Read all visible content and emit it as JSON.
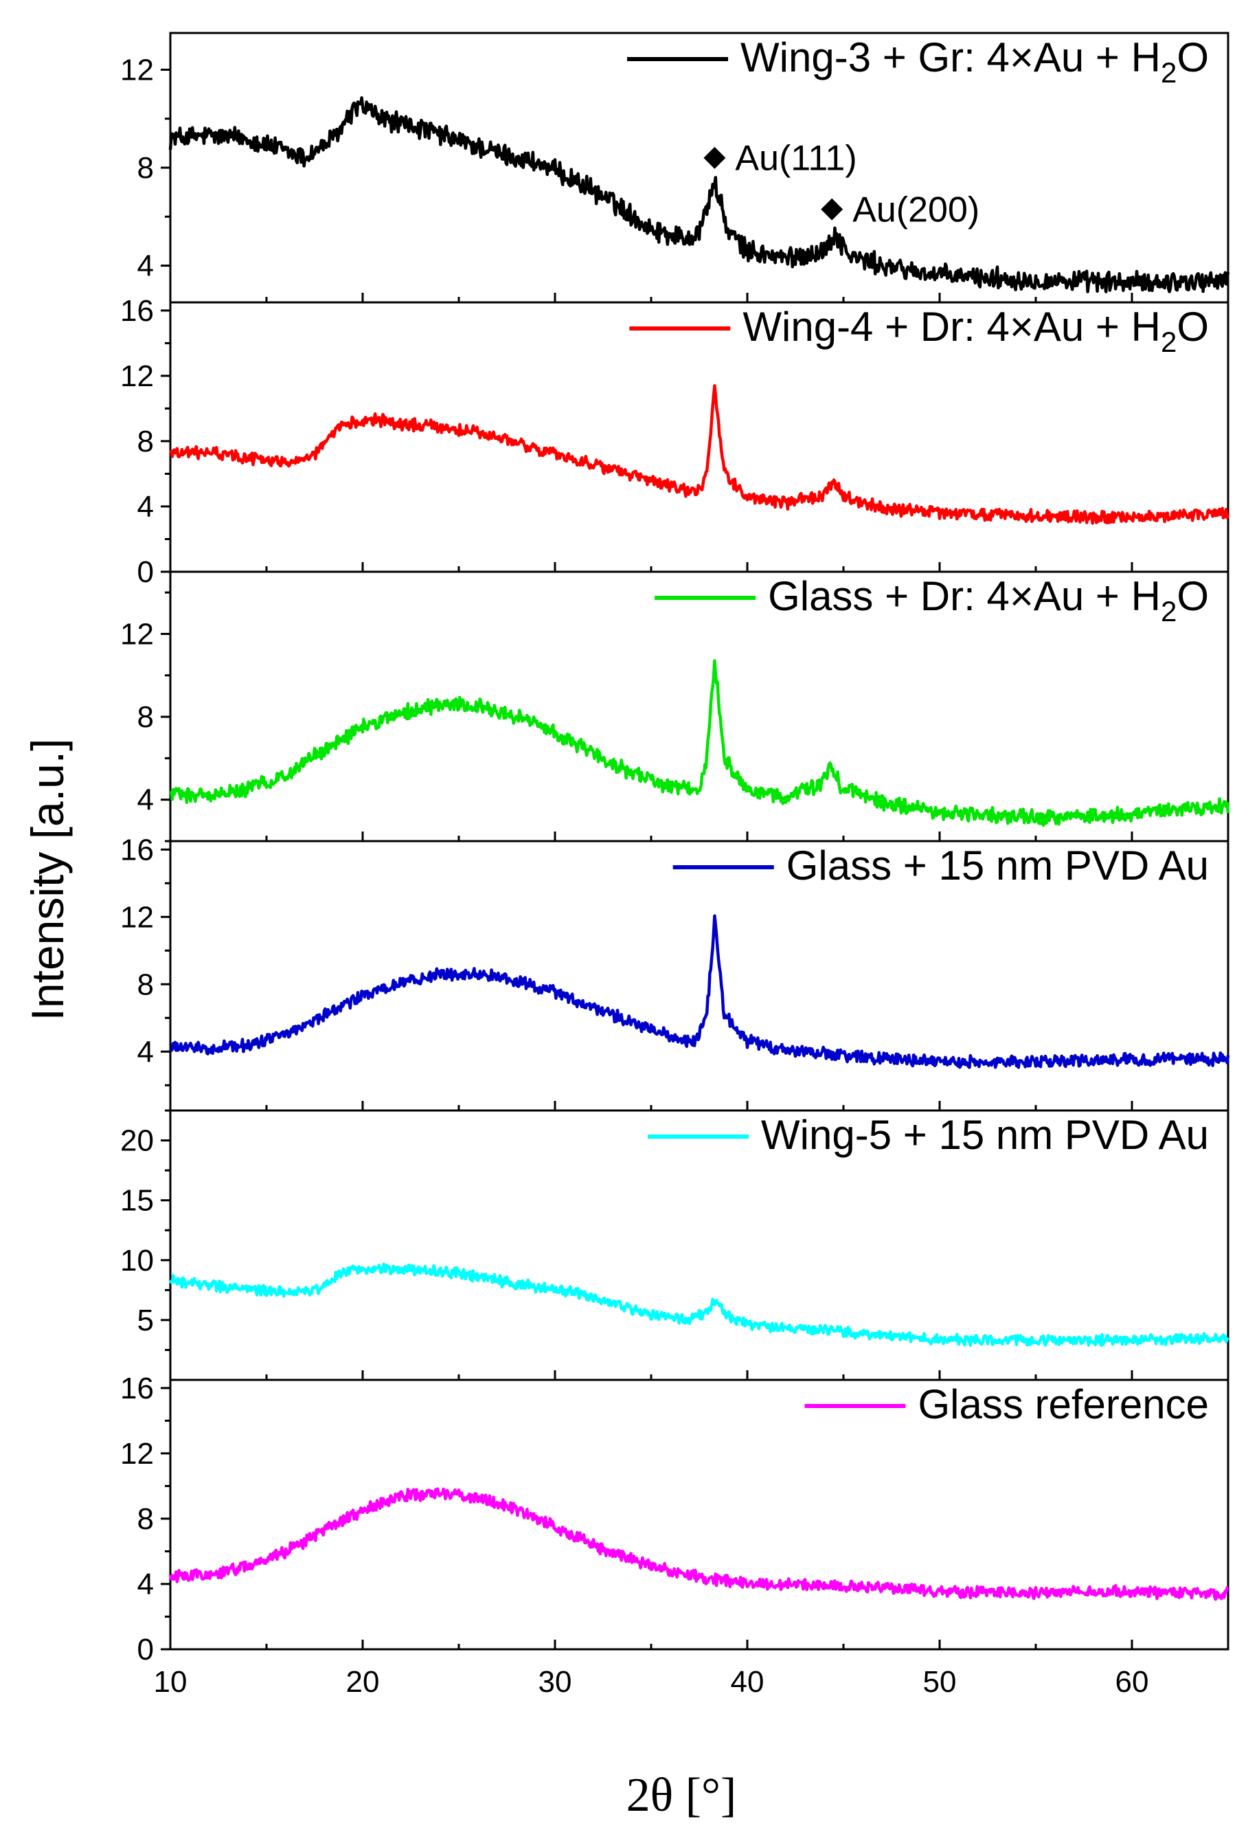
{
  "chart_data": {
    "type": "line",
    "xlabel": "2θ [°]",
    "ylabel": "Intensity [a.u.]",
    "xlim": [
      10,
      65
    ],
    "xticks": [
      10,
      20,
      30,
      40,
      50,
      60
    ],
    "panels": [
      {
        "name": "Wing-3 + Gr: 4×Au + H2O",
        "legend_parts": [
          "Wing-3 + Gr: 4×Au + H",
          "2",
          "O"
        ],
        "color": "#000000",
        "ylim": [
          2.5,
          13.5
        ],
        "yticks": [
          4,
          8,
          12
        ],
        "base": [
          [
            10,
            9.2
          ],
          [
            12,
            9.3
          ],
          [
            14,
            9.2
          ],
          [
            15.5,
            8.8
          ],
          [
            17,
            8.4
          ],
          [
            18.5,
            9.2
          ],
          [
            19.8,
            10.6
          ],
          [
            21,
            10.0
          ],
          [
            23,
            9.6
          ],
          [
            25,
            9.1
          ],
          [
            27,
            8.6
          ],
          [
            29,
            8.2
          ],
          [
            31,
            7.5
          ],
          [
            33,
            6.6
          ],
          [
            35,
            5.5
          ],
          [
            36.8,
            5.1
          ],
          [
            37.5,
            5.4
          ],
          [
            38.3,
            7.4
          ],
          [
            39.0,
            5.4
          ],
          [
            40,
            4.6
          ],
          [
            42,
            4.3
          ],
          [
            44,
            4.6
          ],
          [
            44.6,
            5.3
          ],
          [
            45.3,
            4.4
          ],
          [
            47,
            4.0
          ],
          [
            50,
            3.6
          ],
          [
            55,
            3.4
          ],
          [
            60,
            3.3
          ],
          [
            65,
            3.4
          ]
        ],
        "noise": 0.35,
        "annotations": [
          {
            "label": "Au(111)",
            "x": 38.3,
            "y": 8.4
          },
          {
            "label": "Au(200)",
            "x": 44.4,
            "y": 6.3
          }
        ]
      },
      {
        "name": "Wing-4 + Dr: 4×Au + H2O",
        "legend_parts": [
          "Wing-4 + Dr: 4×Au + H",
          "2",
          "O"
        ],
        "color": "#ff0000",
        "ylim": [
          0,
          16.5
        ],
        "yticks": [
          0,
          4,
          8,
          12,
          16
        ],
        "base": [
          [
            10,
            7.3
          ],
          [
            12,
            7.3
          ],
          [
            14,
            7.0
          ],
          [
            16,
            6.7
          ],
          [
            17.5,
            7.2
          ],
          [
            19,
            9.0
          ],
          [
            20.5,
            9.4
          ],
          [
            22,
            9.0
          ],
          [
            24,
            8.9
          ],
          [
            26,
            8.5
          ],
          [
            28,
            7.9
          ],
          [
            30,
            7.2
          ],
          [
            32,
            6.6
          ],
          [
            34,
            5.9
          ],
          [
            36,
            5.2
          ],
          [
            37.4,
            4.8
          ],
          [
            37.9,
            6.0
          ],
          [
            38.3,
            11.3
          ],
          [
            38.8,
            6.0
          ],
          [
            40,
            4.6
          ],
          [
            42,
            4.2
          ],
          [
            44,
            4.7
          ],
          [
            44.5,
            5.7
          ],
          [
            45,
            4.6
          ],
          [
            47,
            3.9
          ],
          [
            50,
            3.6
          ],
          [
            55,
            3.4
          ],
          [
            60,
            3.3
          ],
          [
            65,
            3.6
          ]
        ],
        "noise": 0.3,
        "annotations": []
      },
      {
        "name": "Glass + Dr: 4×Au + H2O",
        "legend_parts": [
          "Glass + Dr: 4×Au + H",
          "2",
          "O"
        ],
        "color": "#00e600",
        "ylim": [
          2,
          15
        ],
        "yticks": [
          4,
          8,
          12
        ],
        "base": [
          [
            10,
            4.3
          ],
          [
            12,
            4.2
          ],
          [
            14,
            4.5
          ],
          [
            16,
            5.2
          ],
          [
            18,
            6.4
          ],
          [
            20,
            7.5
          ],
          [
            22,
            8.2
          ],
          [
            24,
            8.6
          ],
          [
            26,
            8.5
          ],
          [
            28,
            8.0
          ],
          [
            30,
            7.2
          ],
          [
            32,
            6.2
          ],
          [
            34,
            5.3
          ],
          [
            36,
            4.6
          ],
          [
            37.5,
            4.5
          ],
          [
            37.9,
            6.0
          ],
          [
            38.3,
            10.7
          ],
          [
            38.8,
            6.0
          ],
          [
            40,
            4.4
          ],
          [
            42,
            4.1
          ],
          [
            43.8,
            4.7
          ],
          [
            44.3,
            5.6
          ],
          [
            44.9,
            4.6
          ],
          [
            47,
            3.9
          ],
          [
            50,
            3.4
          ],
          [
            55,
            3.1
          ],
          [
            60,
            3.3
          ],
          [
            65,
            3.7
          ]
        ],
        "noise": 0.3,
        "annotations": []
      },
      {
        "name": "Glass + 15 nm PVD Au",
        "legend_parts": [
          "Glass + 15 nm PVD Au",
          "",
          ""
        ],
        "color": "#0000cc",
        "ylim": [
          0.5,
          16.5
        ],
        "yticks": [
          4,
          8,
          12,
          16
        ],
        "base": [
          [
            10,
            4.2
          ],
          [
            12,
            4.2
          ],
          [
            14,
            4.4
          ],
          [
            16,
            5.0
          ],
          [
            18,
            6.2
          ],
          [
            20,
            7.3
          ],
          [
            22,
            8.1
          ],
          [
            24,
            8.6
          ],
          [
            26,
            8.6
          ],
          [
            28,
            8.2
          ],
          [
            30,
            7.5
          ],
          [
            32,
            6.6
          ],
          [
            34,
            5.7
          ],
          [
            36,
            4.9
          ],
          [
            37.3,
            4.6
          ],
          [
            37.9,
            6.2
          ],
          [
            38.3,
            11.9
          ],
          [
            38.8,
            6.2
          ],
          [
            40,
            4.6
          ],
          [
            42,
            4.1
          ],
          [
            44,
            3.9
          ],
          [
            47,
            3.6
          ],
          [
            50,
            3.4
          ],
          [
            55,
            3.4
          ],
          [
            60,
            3.5
          ],
          [
            65,
            3.6
          ]
        ],
        "noise": 0.3,
        "annotations": []
      },
      {
        "name": "Wing-5 + 15 nm PVD Au",
        "legend_parts": [
          "Wing-5 + 15 nm PVD Au",
          "",
          ""
        ],
        "color": "#00ffff",
        "ylim": [
          0,
          22.5
        ],
        "yticks": [
          5,
          10,
          15,
          20
        ],
        "base": [
          [
            10,
            8.3
          ],
          [
            12,
            7.9
          ],
          [
            14,
            7.6
          ],
          [
            16,
            7.3
          ],
          [
            17.5,
            7.4
          ],
          [
            19,
            9.1
          ],
          [
            21,
            9.3
          ],
          [
            23,
            9.2
          ],
          [
            25,
            8.9
          ],
          [
            27,
            8.3
          ],
          [
            29,
            7.8
          ],
          [
            31,
            7.3
          ],
          [
            33,
            6.4
          ],
          [
            35,
            5.4
          ],
          [
            37,
            5.0
          ],
          [
            37.8,
            5.6
          ],
          [
            38.3,
            6.6
          ],
          [
            38.9,
            5.4
          ],
          [
            40,
            4.6
          ],
          [
            42,
            4.3
          ],
          [
            44,
            4.2
          ],
          [
            46,
            3.8
          ],
          [
            50,
            3.4
          ],
          [
            55,
            3.3
          ],
          [
            60,
            3.3
          ],
          [
            65,
            3.5
          ]
        ],
        "noise": 0.35,
        "annotations": []
      },
      {
        "name": "Glass reference",
        "legend_parts": [
          "Glass reference",
          "",
          ""
        ],
        "color": "#ff00ff",
        "ylim": [
          0,
          16.5
        ],
        "yticks": [
          0,
          4,
          8,
          12,
          16
        ],
        "base": [
          [
            10,
            4.4
          ],
          [
            12,
            4.6
          ],
          [
            14,
            5.1
          ],
          [
            16,
            6.0
          ],
          [
            18,
            7.3
          ],
          [
            20,
            8.5
          ],
          [
            22,
            9.4
          ],
          [
            24,
            9.6
          ],
          [
            26,
            9.3
          ],
          [
            28,
            8.5
          ],
          [
            30,
            7.5
          ],
          [
            32,
            6.4
          ],
          [
            34,
            5.5
          ],
          [
            36,
            4.8
          ],
          [
            38,
            4.3
          ],
          [
            40,
            4.1
          ],
          [
            42,
            4.0
          ],
          [
            45,
            3.9
          ],
          [
            48,
            3.7
          ],
          [
            50,
            3.5
          ],
          [
            55,
            3.5
          ],
          [
            60,
            3.5
          ],
          [
            65,
            3.4
          ]
        ],
        "noise": 0.3,
        "annotations": []
      }
    ]
  }
}
